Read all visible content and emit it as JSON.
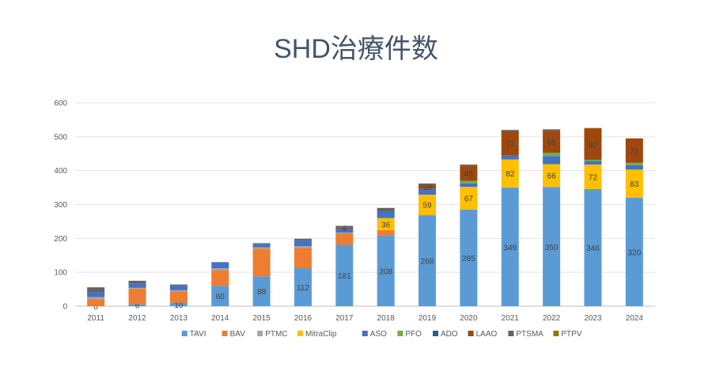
{
  "chart_data": {
    "type": "bar",
    "stacked": true,
    "title": "SHD治療件数",
    "xlabel": "",
    "ylabel": "",
    "ylim": [
      0,
      600
    ],
    "yticks": [
      0,
      100,
      200,
      300,
      400,
      500,
      600
    ],
    "grid": true,
    "legend_position": "bottom",
    "categories": [
      "2011",
      "2012",
      "2013",
      "2014",
      "2015",
      "2016",
      "2017",
      "2018",
      "2019",
      "2020",
      "2021",
      "2022",
      "2023",
      "2024"
    ],
    "series": [
      {
        "name": "TAVI",
        "color": "#5b9bd5",
        "values": [
          0,
          6,
          10,
          60,
          88,
          112,
          181,
          208,
          268,
          285,
          349,
          350,
          346,
          320
        ],
        "labels": [
          true,
          true,
          true,
          true,
          true,
          true,
          true,
          true,
          true,
          true,
          true,
          true,
          true,
          true
        ]
      },
      {
        "name": "BAV",
        "color": "#ed7d31",
        "values": [
          20,
          46,
          34,
          46,
          82,
          60,
          34,
          16,
          2,
          0,
          0,
          0,
          0,
          0
        ]
      },
      {
        "name": "PTMC",
        "color": "#a5a5a5",
        "values": [
          7,
          2,
          3,
          6,
          4,
          5,
          2,
          0,
          0,
          0,
          2,
          3,
          0,
          0
        ]
      },
      {
        "name": "MitraClip",
        "color": "#ffc000",
        "values": [
          0,
          0,
          0,
          0,
          0,
          0,
          0,
          36,
          59,
          67,
          82,
          66,
          72,
          83
        ],
        "labels": [
          false,
          false,
          false,
          false,
          false,
          false,
          false,
          true,
          true,
          true,
          true,
          true,
          true,
          true
        ]
      },
      {
        "name": "ASO",
        "color": "#4472c4",
        "values": [
          14,
          13,
          14,
          18,
          10,
          17,
          12,
          20,
          18,
          10,
          12,
          24,
          11,
          13
        ]
      },
      {
        "name": "PFO",
        "color": "#70ad47",
        "values": [
          0,
          0,
          0,
          0,
          0,
          0,
          0,
          0,
          0,
          8,
          0,
          10,
          3,
          7
        ]
      },
      {
        "name": "ADO",
        "color": "#255e91",
        "values": [
          0,
          0,
          0,
          0,
          0,
          0,
          0,
          0,
          0,
          0,
          0,
          0,
          0,
          0
        ]
      },
      {
        "name": "LAAO",
        "color": "#9e480e",
        "values": [
          0,
          0,
          0,
          0,
          0,
          0,
          4,
          0,
          10,
          45,
          71,
          65,
          92,
          72
        ],
        "labels": [
          false,
          false,
          false,
          false,
          false,
          false,
          true,
          false,
          true,
          true,
          true,
          true,
          true,
          true
        ]
      },
      {
        "name": "PTSMA",
        "color": "#636363",
        "values": [
          13,
          8,
          3,
          0,
          2,
          5,
          4,
          10,
          5,
          3,
          4,
          4,
          0,
          0
        ]
      },
      {
        "name": "PTPV",
        "color": "#997300",
        "values": [
          2,
          0,
          0,
          0,
          0,
          0,
          0,
          0,
          0,
          0,
          0,
          0,
          2,
          0
        ]
      }
    ]
  }
}
